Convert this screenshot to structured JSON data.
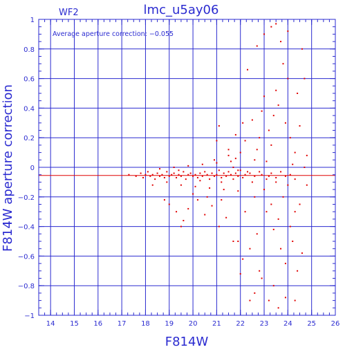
{
  "chart_data": {
    "type": "scatter",
    "title": "lmc_u5ay06",
    "panel_label": "WF2",
    "annotation": "Average aperture correction: −0.055",
    "xlabel": "F814W",
    "ylabel": "F814W aperture correction",
    "xlim": [
      13.5,
      26
    ],
    "ylim": [
      -1,
      1
    ],
    "x_ticks": [
      14,
      15,
      16,
      17,
      18,
      19,
      20,
      21,
      22,
      23,
      24,
      25,
      26
    ],
    "y_ticks": [
      -1,
      -0.8,
      -0.6,
      -0.4,
      -0.2,
      0,
      0.2,
      0.4,
      0.6,
      0.8,
      1
    ],
    "x_tick_labels": [
      "14",
      "15",
      "16",
      "17",
      "18",
      "19",
      "20",
      "21",
      "22",
      "23",
      "24",
      "25",
      "26"
    ],
    "y_tick_labels": [
      "−1",
      "−0.8",
      "−0.6",
      "−0.4",
      "−0.2",
      "0",
      "0.2",
      "0.4",
      "0.6",
      "0.8",
      "1"
    ],
    "average_line_y": -0.055,
    "grid": true,
    "colors": {
      "axes": "#2a2ad0",
      "points": "#e00000",
      "average_line": "#e00000"
    },
    "series": [
      {
        "points": [
          [
            17.3,
            -0.05
          ],
          [
            17.6,
            -0.06
          ],
          [
            17.8,
            -0.04
          ],
          [
            17.9,
            -0.07
          ],
          [
            18.0,
            -0.05
          ],
          [
            18.1,
            -0.03
          ],
          [
            18.2,
            -0.06
          ],
          [
            18.3,
            -0.05
          ],
          [
            18.4,
            -0.08
          ],
          [
            18.5,
            -0.04
          ],
          [
            18.6,
            -0.06
          ],
          [
            18.7,
            -0.05
          ],
          [
            18.8,
            -0.07
          ],
          [
            18.9,
            -0.03
          ],
          [
            19.0,
            -0.06
          ],
          [
            19.1,
            -0.05
          ],
          [
            19.2,
            -0.04
          ],
          [
            19.3,
            -0.07
          ],
          [
            19.4,
            -0.05
          ],
          [
            19.5,
            -0.06
          ],
          [
            19.6,
            -0.03
          ],
          [
            19.7,
            -0.08
          ],
          [
            19.8,
            -0.05
          ],
          [
            19.9,
            -0.04
          ],
          [
            20.0,
            -0.06
          ],
          [
            20.1,
            -0.05
          ],
          [
            20.2,
            -0.07
          ],
          [
            20.3,
            -0.04
          ],
          [
            20.4,
            -0.06
          ],
          [
            20.5,
            -0.03
          ],
          [
            20.6,
            -0.05
          ],
          [
            20.7,
            -0.08
          ],
          [
            20.8,
            -0.04
          ],
          [
            20.9,
            -0.06
          ],
          [
            21.0,
            -0.05
          ],
          [
            21.1,
            -0.02
          ],
          [
            21.2,
            -0.07
          ],
          [
            21.3,
            -0.04
          ],
          [
            21.4,
            -0.06
          ],
          [
            21.5,
            -0.03
          ],
          [
            21.6,
            -0.05
          ],
          [
            21.7,
            -0.08
          ],
          [
            21.8,
            -0.04
          ],
          [
            21.9,
            -0.06
          ],
          [
            22.0,
            -0.02
          ],
          [
            22.1,
            -0.07
          ],
          [
            22.2,
            -0.05
          ],
          [
            22.3,
            -0.03
          ],
          [
            18.3,
            -0.12
          ],
          [
            18.6,
            -0.01
          ],
          [
            18.9,
            -0.1
          ],
          [
            19.2,
            0.0
          ],
          [
            19.5,
            -0.12
          ],
          [
            19.8,
            0.01
          ],
          [
            20.1,
            -0.13
          ],
          [
            20.4,
            0.02
          ],
          [
            20.7,
            -0.14
          ],
          [
            21.0,
            0.03
          ],
          [
            21.3,
            -0.15
          ],
          [
            21.6,
            0.04
          ],
          [
            21.9,
            -0.16
          ],
          [
            18.8,
            -0.22
          ],
          [
            19.0,
            -0.25
          ],
          [
            19.3,
            -0.3
          ],
          [
            19.6,
            -0.36
          ],
          [
            19.8,
            -0.28
          ],
          [
            20.2,
            -0.22
          ],
          [
            20.5,
            -0.32
          ],
          [
            20.8,
            -0.26
          ],
          [
            21.1,
            -0.4
          ],
          [
            21.4,
            -0.34
          ],
          [
            21.7,
            -0.5
          ],
          [
            19.5,
            -0.4
          ],
          [
            20.0,
            -0.18
          ],
          [
            20.6,
            -0.2
          ],
          [
            21.2,
            -0.22
          ],
          [
            21.5,
            0.08
          ],
          [
            21.8,
            0.06
          ],
          [
            20.9,
            0.05
          ],
          [
            21.0,
            0.18
          ],
          [
            21.1,
            0.28
          ],
          [
            21.5,
            0.12
          ],
          [
            21.8,
            0.22
          ],
          [
            22.0,
            0.1
          ],
          [
            22.1,
            0.3
          ],
          [
            22.2,
            0.18
          ],
          [
            22.3,
            0.66
          ],
          [
            22.5,
            0.32
          ],
          [
            22.6,
            -0.2
          ],
          [
            22.7,
            -0.45
          ],
          [
            22.8,
            -0.7
          ],
          [
            22.4,
            -0.55
          ],
          [
            22.2,
            -0.3
          ],
          [
            22.1,
            -0.62
          ],
          [
            22.0,
            -0.72
          ],
          [
            21.9,
            -0.5
          ],
          [
            22.5,
            -0.1
          ],
          [
            22.6,
            0.05
          ],
          [
            22.7,
            0.12
          ],
          [
            22.8,
            0.2
          ],
          [
            22.9,
            0.38
          ],
          [
            23.0,
            0.48
          ],
          [
            23.0,
            -0.15
          ],
          [
            23.1,
            -0.3
          ],
          [
            23.1,
            0.04
          ],
          [
            23.2,
            0.25
          ],
          [
            23.2,
            -0.06
          ],
          [
            23.3,
            0.15
          ],
          [
            23.3,
            -0.25
          ],
          [
            23.4,
            0.35
          ],
          [
            23.4,
            -0.42
          ],
          [
            23.5,
            0.52
          ],
          [
            23.5,
            -0.1
          ],
          [
            23.6,
            0.42
          ],
          [
            23.6,
            -0.35
          ],
          [
            23.7,
            0.85
          ],
          [
            23.7,
            -0.55
          ],
          [
            23.8,
            0.7
          ],
          [
            23.8,
            -0.2
          ],
          [
            23.9,
            0.3
          ],
          [
            23.9,
            -0.65
          ],
          [
            24.0,
            0.6
          ],
          [
            24.0,
            -0.12
          ],
          [
            24.1,
            0.2
          ],
          [
            24.1,
            -0.4
          ],
          [
            24.2,
            0.02
          ],
          [
            24.2,
            -0.5
          ],
          [
            24.3,
            0.1
          ],
          [
            24.3,
            -0.3
          ],
          [
            24.4,
            0.5
          ],
          [
            24.4,
            -0.7
          ],
          [
            24.5,
            0.28
          ],
          [
            24.5,
            -0.25
          ],
          [
            24.6,
            0.8
          ],
          [
            24.6,
            -0.58
          ],
          [
            24.7,
            0.0
          ],
          [
            24.7,
            0.6
          ],
          [
            24.8,
            -0.12
          ],
          [
            24.8,
            0.08
          ],
          [
            23.2,
            -0.9
          ],
          [
            23.4,
            -0.8
          ],
          [
            23.6,
            -0.95
          ],
          [
            23.9,
            -0.88
          ],
          [
            24.3,
            -0.9
          ],
          [
            22.6,
            -0.85
          ],
          [
            22.9,
            -0.75
          ],
          [
            22.4,
            -0.9
          ],
          [
            23.0,
            0.9
          ],
          [
            23.5,
            0.97
          ],
          [
            24.0,
            0.92
          ],
          [
            23.3,
            0.95
          ],
          [
            22.7,
            0.82
          ],
          [
            22.9,
            -0.05
          ],
          [
            23.1,
            -0.08
          ],
          [
            23.3,
            -0.04
          ],
          [
            23.5,
            -0.07
          ],
          [
            23.7,
            -0.03
          ],
          [
            23.9,
            -0.06
          ],
          [
            24.1,
            -0.05
          ],
          [
            24.3,
            -0.08
          ],
          [
            22.4,
            -0.04
          ],
          [
            22.6,
            -0.06
          ],
          [
            22.8,
            -0.03
          ],
          [
            21.9,
            -0.02
          ],
          [
            21.7,
            0.0
          ],
          [
            21.2,
            -0.1
          ],
          [
            20.3,
            -0.09
          ],
          [
            19.4,
            -0.02
          ]
        ]
      }
    ]
  }
}
